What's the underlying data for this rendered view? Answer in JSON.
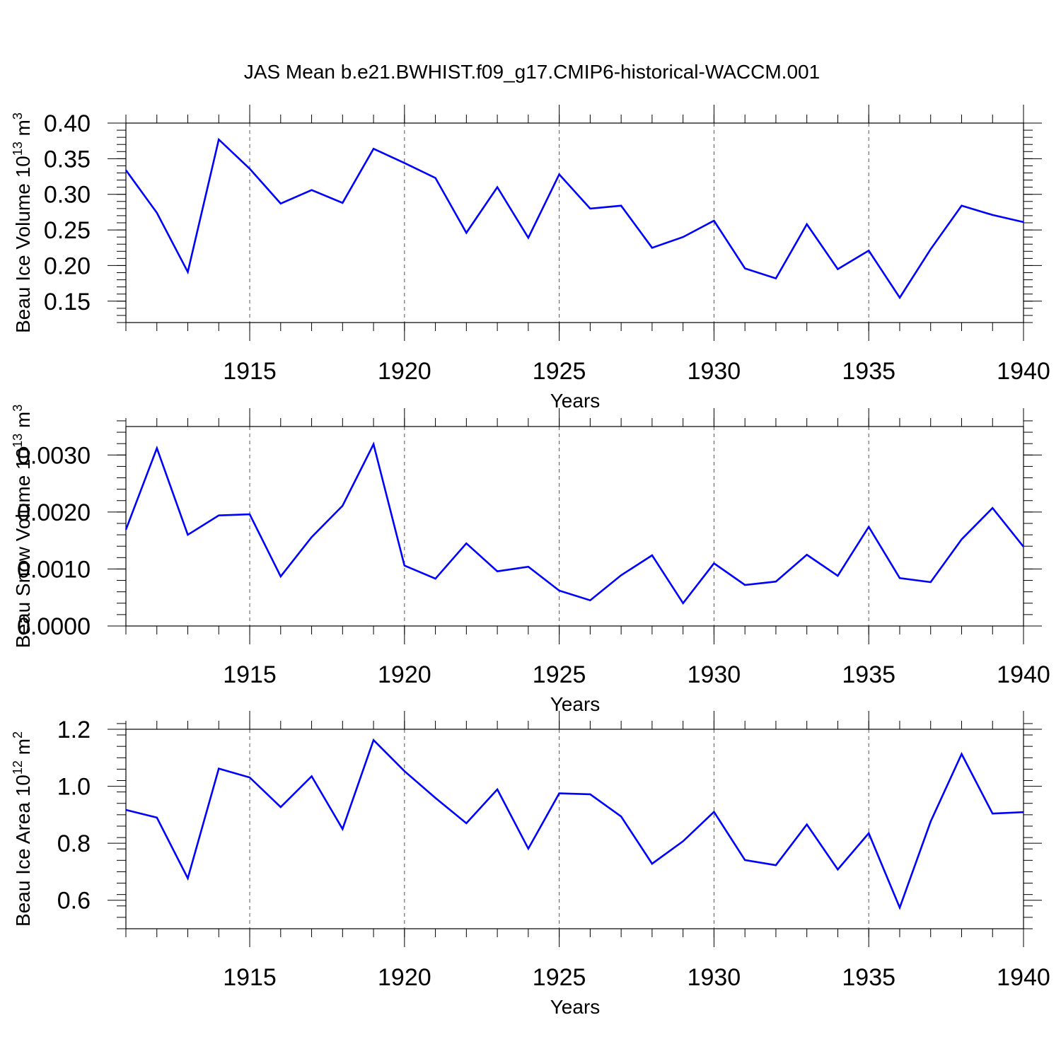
{
  "figure_title": "JAS Mean b.e21.BWHIST.f09_g17.CMIP6-historical-WACCM.001",
  "chart_data": [
    {
      "type": "line",
      "title": "JAS Mean b.e21.BWHIST.f09_g17.CMIP6-historical-WACCM.001",
      "xlabel": "Years",
      "ylabel": "Beau Ice Volume 10^13 m^3",
      "ylabel_parts": {
        "base": "Beau Ice Volume 10",
        "exp1": "13",
        "mid": " m",
        "exp2": "3"
      },
      "xlim": [
        1911,
        1940
      ],
      "ylim": [
        0.12,
        0.4
      ],
      "x_ticks": [
        1915,
        1920,
        1925,
        1930,
        1935,
        1940
      ],
      "x_tick_labels": [
        "1915",
        "1920",
        "1925",
        "1930",
        "1935",
        "1940"
      ],
      "y_ticks": [
        0.15,
        0.2,
        0.25,
        0.3,
        0.35,
        0.4
      ],
      "y_tick_labels": [
        "0.15",
        "0.20",
        "0.25",
        "0.30",
        "0.35",
        "0.40"
      ],
      "y_minor_step": 0.01,
      "color": "#0000ff",
      "x": [
        1911,
        1912,
        1913,
        1914,
        1915,
        1916,
        1917,
        1918,
        1919,
        1920,
        1921,
        1922,
        1923,
        1924,
        1925,
        1926,
        1927,
        1928,
        1929,
        1930,
        1931,
        1932,
        1933,
        1934,
        1935,
        1936,
        1937,
        1938,
        1939,
        1940
      ],
      "values": [
        0.334,
        0.274,
        0.191,
        0.377,
        0.336,
        0.287,
        0.306,
        0.288,
        0.364,
        0.344,
        0.323,
        0.246,
        0.31,
        0.239,
        0.328,
        0.28,
        0.284,
        0.225,
        0.24,
        0.263,
        0.196,
        0.182,
        0.258,
        0.195,
        0.221,
        0.155,
        0.223,
        0.284,
        0.271,
        0.261
      ]
    },
    {
      "type": "line",
      "xlabel": "Years",
      "ylabel": "Beau Snow Volume 10^13 m^3",
      "ylabel_parts": {
        "base": "Beau Snow Volume 10",
        "exp1": "13",
        "mid": " m",
        "exp2": "3"
      },
      "xlim": [
        1911,
        1940
      ],
      "ylim": [
        0.0,
        0.0035
      ],
      "x_ticks": [
        1915,
        1920,
        1925,
        1930,
        1935,
        1940
      ],
      "x_tick_labels": [
        "1915",
        "1920",
        "1925",
        "1930",
        "1935",
        "1940"
      ],
      "y_ticks": [
        0.0,
        0.001,
        0.002,
        0.003
      ],
      "y_tick_labels": [
        "0.0000",
        "0.0010",
        "0.0020",
        "0.0030"
      ],
      "y_minor_step": 0.0002,
      "color": "#0000ff",
      "x": [
        1911,
        1912,
        1913,
        1914,
        1915,
        1916,
        1917,
        1918,
        1919,
        1920,
        1921,
        1922,
        1923,
        1924,
        1925,
        1926,
        1927,
        1928,
        1929,
        1930,
        1931,
        1932,
        1933,
        1934,
        1935,
        1936,
        1937,
        1938,
        1939,
        1940
      ],
      "values": [
        0.00169,
        0.00312,
        0.0016,
        0.00194,
        0.00196,
        0.00087,
        0.00156,
        0.00211,
        0.00319,
        0.00106,
        0.00083,
        0.00145,
        0.00096,
        0.00104,
        0.00062,
        0.00045,
        0.00089,
        0.00124,
        0.0004,
        0.0011,
        0.00072,
        0.00078,
        0.00125,
        0.00088,
        0.00174,
        0.00084,
        0.00077,
        0.00152,
        0.00207,
        0.00139
      ]
    },
    {
      "type": "line",
      "xlabel": "Years",
      "ylabel": "Beau Ice Area 10^12 m^2",
      "ylabel_parts": {
        "base": "Beau Ice Area 10",
        "exp1": "12",
        "mid": " m",
        "exp2": "2"
      },
      "xlim": [
        1911,
        1940
      ],
      "ylim": [
        0.5,
        1.2
      ],
      "x_ticks": [
        1915,
        1920,
        1925,
        1930,
        1935,
        1940
      ],
      "x_tick_labels": [
        "1915",
        "1920",
        "1925",
        "1930",
        "1935",
        "1940"
      ],
      "y_ticks": [
        0.6,
        0.8,
        1.0,
        1.2
      ],
      "y_tick_labels": [
        "0.6",
        "0.8",
        "1.0",
        "1.2"
      ],
      "y_minor_step": 0.04,
      "color": "#0000ff",
      "x": [
        1911,
        1912,
        1913,
        1914,
        1915,
        1916,
        1917,
        1918,
        1919,
        1920,
        1921,
        1922,
        1923,
        1924,
        1925,
        1926,
        1927,
        1928,
        1929,
        1930,
        1931,
        1932,
        1933,
        1934,
        1935,
        1936,
        1937,
        1938,
        1939,
        1940
      ],
      "values": [
        0.917,
        0.89,
        0.677,
        1.062,
        1.031,
        0.927,
        1.035,
        0.85,
        1.162,
        1.053,
        0.959,
        0.87,
        0.989,
        0.781,
        0.975,
        0.972,
        0.894,
        0.728,
        0.807,
        0.91,
        0.741,
        0.723,
        0.866,
        0.708,
        0.835,
        0.574,
        0.876,
        1.113,
        0.904,
        0.909
      ]
    }
  ]
}
